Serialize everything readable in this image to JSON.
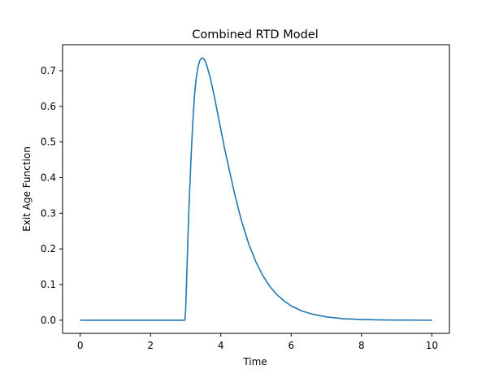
{
  "chart_data": {
    "type": "line",
    "title": "Combined RTD Model",
    "xlabel": "Time",
    "ylabel": "Exit Age Function",
    "xlim": [
      -0.5,
      10.5
    ],
    "ylim": [
      -0.037,
      0.773
    ],
    "x_ticks": [
      0,
      2,
      4,
      6,
      8,
      10
    ],
    "x_tick_labels": [
      "0",
      "2",
      "4",
      "6",
      "8",
      "10"
    ],
    "y_ticks": [
      0.0,
      0.1,
      0.2,
      0.3,
      0.4,
      0.5,
      0.6,
      0.7
    ],
    "y_tick_labels": [
      "0.0",
      "0.1",
      "0.2",
      "0.3",
      "0.4",
      "0.5",
      "0.6",
      "0.7"
    ],
    "grid": false,
    "legend": "none",
    "series": [
      {
        "color": "#1f77b4",
        "x": [
          0,
          1,
          2,
          2.98,
          3.0,
          3.03,
          3.06,
          3.1,
          3.15,
          3.2,
          3.25,
          3.3,
          3.35,
          3.4,
          3.45,
          3.5,
          3.55,
          3.6,
          3.7,
          3.8,
          3.9,
          4.0,
          4.1,
          4.2,
          4.3,
          4.4,
          4.5,
          4.6,
          4.8,
          5.0,
          5.2,
          5.4,
          5.6,
          5.8,
          6.0,
          6.3,
          6.6,
          7.0,
          7.5,
          8.0,
          8.5,
          9.0,
          9.5,
          10.0
        ],
        "y": [
          0.0,
          0.0,
          0.0,
          0.0,
          0.03,
          0.12,
          0.22,
          0.33,
          0.45,
          0.55,
          0.63,
          0.68,
          0.71,
          0.728,
          0.735,
          0.735,
          0.728,
          0.715,
          0.68,
          0.635,
          0.585,
          0.535,
          0.485,
          0.44,
          0.395,
          0.352,
          0.312,
          0.275,
          0.212,
          0.163,
          0.124,
          0.094,
          0.071,
          0.054,
          0.04,
          0.026,
          0.017,
          0.009,
          0.004,
          0.002,
          0.0008,
          0.0003,
          0.0001,
          0.0
        ]
      }
    ]
  }
}
